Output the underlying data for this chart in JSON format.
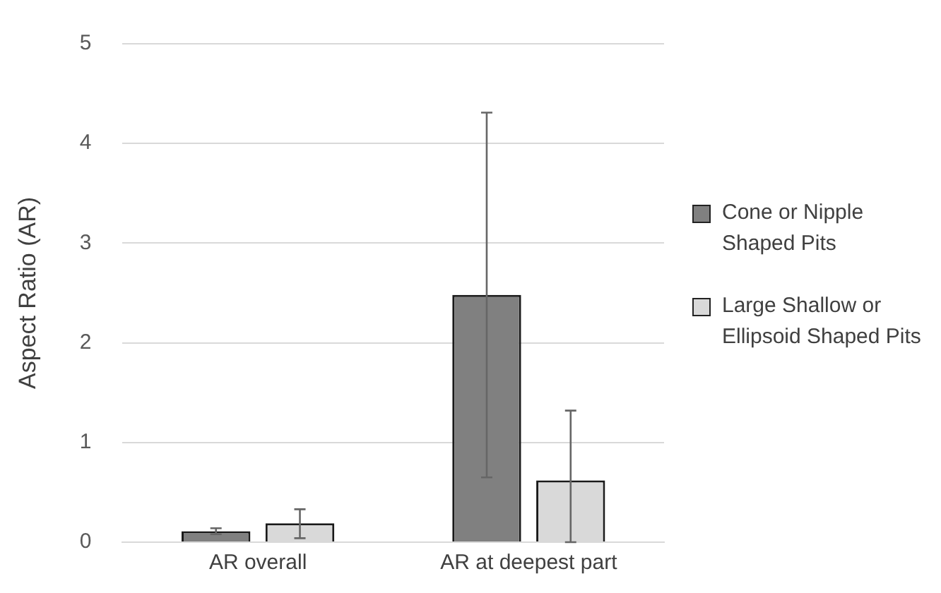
{
  "chart_data": {
    "type": "bar",
    "ylabel": "Aspect Ratio (AR)",
    "categories": [
      "AR overall",
      "AR at deepest part"
    ],
    "series": [
      {
        "name": "Cone or Nipple Shaped Pits",
        "color": "#808080",
        "values": [
          0.11,
          2.48
        ],
        "errors": [
          [
            0.08,
            0.14
          ],
          [
            0.65,
            4.31
          ]
        ]
      },
      {
        "name": "Large Shallow or Ellipsoid Shaped Pits",
        "color": "#d9d9d9",
        "values": [
          0.19,
          0.62
        ],
        "errors": [
          [
            0.04,
            0.33
          ],
          [
            0,
            1.32
          ]
        ]
      }
    ],
    "ylim": [
      0,
      5
    ],
    "yticks": [
      0,
      1,
      2,
      3,
      4,
      5
    ],
    "grid": "y",
    "legend": "right"
  }
}
